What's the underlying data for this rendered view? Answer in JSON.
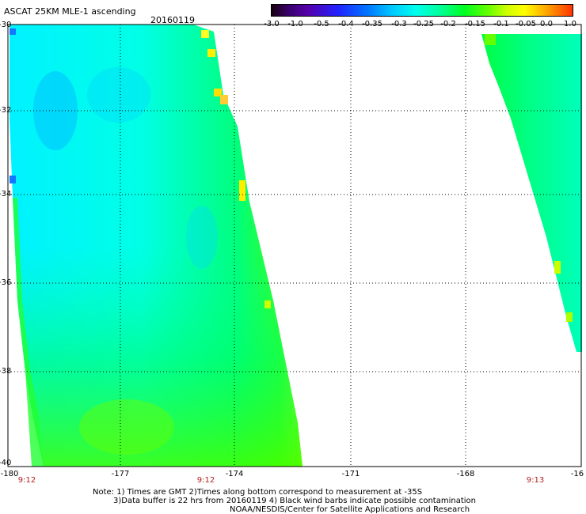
{
  "title": "ASCAT 25KM MLE-1 ascending",
  "date": "20160119",
  "colorbar": {
    "tick_labels": [
      "-3.0",
      "-1.0",
      "-0.5",
      "-0.4",
      "-0.35",
      "-0.3",
      "-0.25",
      "-0.2",
      "-0.15",
      "-0.1",
      "-0.05",
      "0.0",
      "1.0"
    ]
  },
  "map": {
    "lat_labels": [
      "-30",
      "-32",
      "-34",
      "-36",
      "-38",
      "-40"
    ],
    "lon_labels": [
      "-180",
      "-177",
      "-174",
      "-171",
      "-168",
      "-16"
    ],
    "time_labels": [
      "9:12",
      "9:12",
      "9:13"
    ]
  },
  "notes": {
    "line1": "Note: 1) Times are GMT 2)Times along bottom correspond to measurement at -35S",
    "line2": "3)Data buffer is 22 hrs from 20160119 4) Black wind barbs indicate possible contamination",
    "line3": "NOAA/NESDIS/Center for Satellite Applications and Research"
  },
  "colors": {
    "swath_cyan": "#00ffee",
    "swath_green": "#00ff66",
    "swath_yellow": "#ffff00",
    "time_label": "#b22222"
  }
}
